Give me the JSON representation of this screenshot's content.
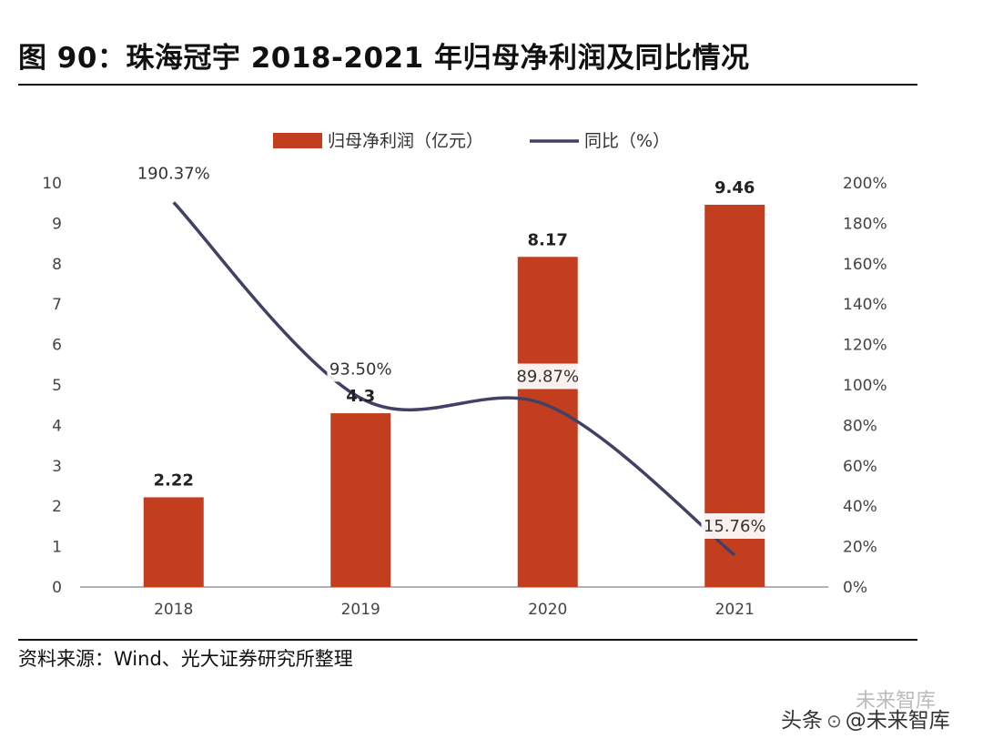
{
  "header": {
    "title": "图 90：珠海冠宇 2018-2021 年归母净利润及同比情况"
  },
  "footer": {
    "source": "资料来源：Wind、光大证券研究所整理"
  },
  "watermark": {
    "text1": "头条",
    "text2": "@未来智库",
    "faint": "未来智库"
  },
  "chart_data": {
    "type": "bar",
    "categories": [
      "2018",
      "2019",
      "2020",
      "2021"
    ],
    "series": [
      {
        "name": "归母净利润（亿元）",
        "kind": "bar",
        "axis": "left",
        "values": [
          2.22,
          4.3,
          8.17,
          9.46
        ],
        "labels": [
          "2.22",
          "4.3",
          "8.17",
          "9.46"
        ]
      },
      {
        "name": "同比（%）",
        "kind": "line",
        "axis": "right",
        "values": [
          190.37,
          93.5,
          89.87,
          15.76
        ],
        "labels": [
          "190.37%",
          "93.50%",
          "89.87%",
          "15.76%"
        ]
      }
    ],
    "ylim_left": [
      0,
      10
    ],
    "yticks_left": [
      "0",
      "1",
      "2",
      "3",
      "4",
      "5",
      "6",
      "7",
      "8",
      "9",
      "10"
    ],
    "ylim_right": [
      0,
      200
    ],
    "yticks_right": [
      "0%",
      "20%",
      "40%",
      "60%",
      "80%",
      "100%",
      "120%",
      "140%",
      "160%",
      "180%",
      "200%"
    ],
    "legend_position": "top-center",
    "colors": {
      "bar": "#C23E1E",
      "line": "#414165",
      "axis": "#999999"
    }
  }
}
